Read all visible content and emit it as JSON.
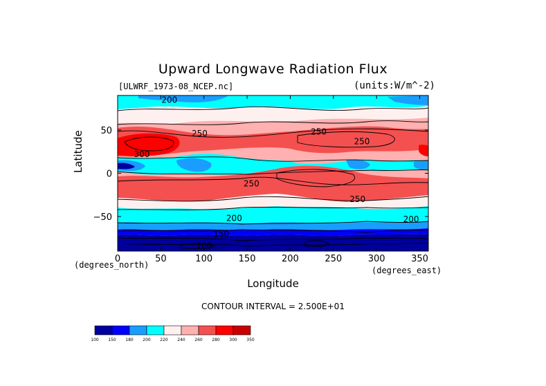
{
  "chart_data": {
    "type": "heatmap",
    "title": "Upward Longwave Radiation Flux",
    "dataset_label": "[ULWRF_1973-08_NCEP.nc]",
    "units_label": "(units:W/m^-2)",
    "xlabel": "Longitude",
    "ylabel": "Latitude",
    "x_unit_label": "(degrees_east)",
    "y_unit_label": "(degrees_north)",
    "xlim": [
      0,
      360
    ],
    "ylim": [
      -90,
      90
    ],
    "x_ticks": [
      0,
      50,
      100,
      150,
      200,
      250,
      300,
      350
    ],
    "y_ticks": [
      -50,
      0,
      50
    ],
    "contour_interval_label": "CONTOUR INTERVAL = 2.500E+01",
    "colorbar": {
      "levels": [
        100,
        150,
        180,
        200,
        220,
        240,
        260,
        280,
        300,
        350
      ],
      "colors": [
        "#00009e",
        "#0000ff",
        "#199eff",
        "#00ffff",
        "#fff0f0",
        "#ffb0b0",
        "#f45050",
        "#ff0000",
        "#c80000"
      ]
    },
    "contour_labels": [
      {
        "text": "200",
        "lon": 60,
        "lat": 85
      },
      {
        "text": "250",
        "lon": 95,
        "lat": 46
      },
      {
        "text": "250",
        "lon": 233,
        "lat": 48
      },
      {
        "text": "250",
        "lon": 283,
        "lat": 37
      },
      {
        "text": "300",
        "lon": 28,
        "lat": 22
      },
      {
        "text": "250",
        "lon": 155,
        "lat": -12
      },
      {
        "text": "250",
        "lon": 278,
        "lat": -30
      },
      {
        "text": "200",
        "lon": 135,
        "lat": -52
      },
      {
        "text": "200",
        "lon": 340,
        "lat": -53
      },
      {
        "text": "150",
        "lon": 120,
        "lat": -70
      },
      {
        "text": "100",
        "lon": 100,
        "lat": -84
      }
    ]
  }
}
